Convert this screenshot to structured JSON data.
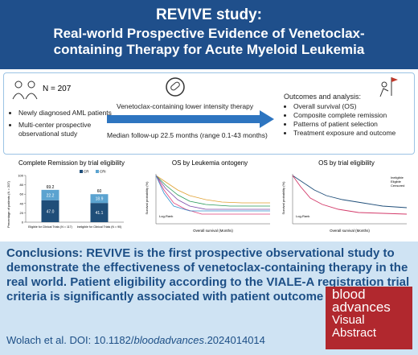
{
  "header": {
    "title": "REVIVE study:",
    "subtitle": "Real-world Prospective Evidence of Venetoclax-containing Therapy for Acute Myeloid Leukemia"
  },
  "design": {
    "n": "N = 207",
    "population": [
      "Newly diagnosed AML patients",
      "Multi-center prospective observational study"
    ],
    "therapy": "Venetoclax-containing lower intensity therapy",
    "followup": "Median follow-up 22.5 months (range 0.1-43 months)",
    "outcomes_title": "Outcomes and analysis:",
    "outcomes": [
      "Overall survival (OS)",
      "Composite complete remission",
      "Patterns of patient selection",
      "Treatment exposure and outcome"
    ]
  },
  "chart_data": {
    "type": "stacked_bar",
    "title": "Complete Remission by trial eligibility",
    "ylabel": "Percentage of patients (N = 207)",
    "categories": [
      "Eligible for Clinical Trials (N = 117)",
      "Ineligible for Clinical Trials (N = 90)"
    ],
    "series": [
      {
        "name": "CR",
        "color": "#1f4e79",
        "values": [
          47.0,
          41.1
        ],
        "value_labels": [
          "47.0",
          "41.1"
        ]
      },
      {
        "name": "CRi",
        "color": "#5ba3d0",
        "values": [
          22.2,
          18.9
        ]
      }
    ],
    "totals": [
      69.2,
      60
    ],
    "ylim": [
      0,
      100
    ],
    "yticks": [
      0,
      20,
      40,
      60,
      80,
      100
    ]
  },
  "km_charts": [
    {
      "title": "OS by Leukemia ontogeny",
      "xlabel": "Overall survival (Months)",
      "ylabel": "Survival probability (%)",
      "note": "Log-Rank"
    },
    {
      "title": "OS by trial eligibility",
      "xlabel": "Overall survival (Months)",
      "ylabel": "Survival probability (%)",
      "note": "Log-Rank",
      "legend": [
        "Ineligible",
        "Eligible",
        "Censored"
      ]
    }
  ],
  "conclusions": {
    "label": "Conclusions:",
    "text": "REVIVE is the first prospective observational study to demonstrate the effectiveness of venetoclax-containing therapy in the real world. Patient eligibility according to the VIALE-A registration trial criteria is significantly associated with patient outcome in the clinic."
  },
  "citation": {
    "authors": "Wolach et al. DOI: 10.1182/",
    "journal": "bloodadvances",
    "id": ".2024014014"
  },
  "logo": {
    "line1": "blood",
    "line2": "advances",
    "line3": "Visual",
    "line4": "Abstract"
  }
}
